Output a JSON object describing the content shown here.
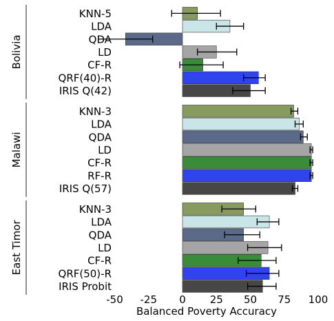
{
  "chart_data": {
    "type": "bar",
    "orientation": "horizontal",
    "xlabel": "Balanced Poverty Accuracy",
    "xlim": [
      -60,
      100
    ],
    "xticks": [
      -50,
      -25,
      0,
      25,
      50,
      75,
      100
    ],
    "xtick_labels": [
      "-50",
      "-25",
      "0",
      "25",
      "50",
      "75",
      "100"
    ],
    "grid": false,
    "colors": {
      "KNN": "#879b5f",
      "LDA": "#c9e5e8",
      "QDA": "#5b6a88",
      "LD": "#a5a5a5",
      "CF": "#3a8c3a",
      "RF": "#2f44ee",
      "IRIS": "#474747"
    },
    "groups": [
      {
        "name": "Bolivia",
        "bars": [
          {
            "label": "KNN-5",
            "color_key": "KNN",
            "value": 11,
            "err_low": -8,
            "err_high": 28
          },
          {
            "label": "LDA",
            "color_key": "LDA",
            "value": 35,
            "err_low": 25,
            "err_high": 45
          },
          {
            "label": "QDA",
            "color_key": "QDA",
            "value": -42,
            "err_low": -62,
            "err_high": -22
          },
          {
            "label": "LD",
            "color_key": "LD",
            "value": 25,
            "err_low": 11,
            "err_high": 40
          },
          {
            "label": "CF-R",
            "color_key": "CF",
            "value": 15,
            "err_low": -2,
            "err_high": 30
          },
          {
            "label": "QRF(40)-R",
            "color_key": "RF",
            "value": 56,
            "err_low": 45,
            "err_high": 61
          },
          {
            "label": "IRIS Q(42)",
            "color_key": "IRIS",
            "value": 50,
            "err_low": 37,
            "err_high": 61
          }
        ]
      },
      {
        "name": "Malawi",
        "bars": [
          {
            "label": "KNN-3",
            "color_key": "KNN",
            "value": 82,
            "err_low": 80,
            "err_high": 85
          },
          {
            "label": "LDA",
            "color_key": "LDA",
            "value": 86,
            "err_low": 83,
            "err_high": 89
          },
          {
            "label": "QDA",
            "color_key": "QDA",
            "value": 89,
            "err_low": 87,
            "err_high": 92
          },
          {
            "label": "LD",
            "color_key": "LD",
            "value": 95,
            "err_low": 94,
            "err_high": 96
          },
          {
            "label": "CF-R",
            "color_key": "CF",
            "value": 95,
            "err_low": 94,
            "err_high": 96
          },
          {
            "label": "RF-R",
            "color_key": "RF",
            "value": 95,
            "err_low": 94,
            "err_high": 96
          },
          {
            "label": "IRIS Q(57)",
            "color_key": "IRIS",
            "value": 83,
            "err_low": 81,
            "err_high": 85
          }
        ]
      },
      {
        "name": "East Timor",
        "bars": [
          {
            "label": "KNN-3",
            "color_key": "KNN",
            "value": 45,
            "err_low": 29,
            "err_high": 54
          },
          {
            "label": "LDA",
            "color_key": "LDA",
            "value": 64,
            "err_low": 55,
            "err_high": 71
          },
          {
            "label": "QDA",
            "color_key": "QDA",
            "value": 45,
            "err_low": 31,
            "err_high": 57
          },
          {
            "label": "LD",
            "color_key": "LD",
            "value": 63,
            "err_low": 48,
            "err_high": 73
          },
          {
            "label": "CF-R",
            "color_key": "CF",
            "value": 58,
            "err_low": 41,
            "err_high": 69
          },
          {
            "label": "QRF(50)-R",
            "color_key": "RF",
            "value": 64,
            "err_low": 47,
            "err_high": 71
          },
          {
            "label": "IRIS Probit",
            "color_key": "IRIS",
            "value": 59,
            "err_low": 48,
            "err_high": 69
          }
        ]
      }
    ]
  }
}
